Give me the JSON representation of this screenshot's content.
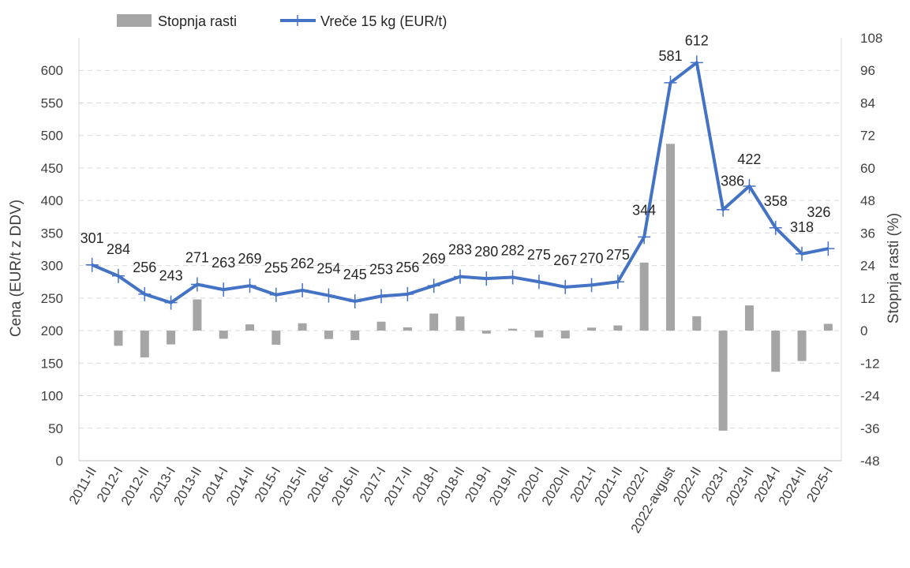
{
  "chart_data": {
    "type": "bar+line",
    "categories": [
      "2011-II",
      "2012-I",
      "2012-II",
      "2013-I",
      "2013-II",
      "2014-I",
      "2014-II",
      "2015-I",
      "2015-II",
      "2016-I",
      "2016-II",
      "2017-I",
      "2017-II",
      "2018-I",
      "2018-II",
      "2019-I",
      "2019-II",
      "2020-I",
      "2020-II",
      "2021-I",
      "2021-II",
      "2022-I",
      "2022-avgust",
      "2022-II",
      "2023-I",
      "2023-II",
      "2024-I",
      "2024-II",
      "2025-I"
    ],
    "series": [
      {
        "name": "Stopnja rasti",
        "type": "bar",
        "axis": "right",
        "color": "#a5a5a5",
        "values": [
          null,
          -5.6,
          -9.9,
          -5.1,
          11.5,
          -3.0,
          2.3,
          -5.2,
          2.7,
          -3.1,
          -3.5,
          3.3,
          1.2,
          6.3,
          5.2,
          -1.1,
          0.7,
          -2.5,
          -2.9,
          1.1,
          1.9,
          25.1,
          68.9,
          5.3,
          -36.9,
          9.3,
          -15.2,
          -11.2,
          2.5
        ]
      },
      {
        "name": "Vreče 15 kg (EUR/t)",
        "type": "line",
        "axis": "left",
        "color": "#4472c4",
        "values": [
          301,
          284,
          256,
          243,
          271,
          263,
          269,
          255,
          262,
          254,
          245,
          253,
          256,
          269,
          283,
          280,
          282,
          275,
          267,
          270,
          275,
          344,
          581,
          612,
          386,
          422,
          358,
          318,
          326
        ]
      }
    ],
    "ylabel": "Cena (EUR/t z DDV)",
    "ylabel_right": "Stopnja rasti (%)",
    "ylim": [
      0,
      650
    ],
    "y_ticks": [
      "0",
      "50",
      "100",
      "150",
      "200",
      "250",
      "300",
      "350",
      "400",
      "450",
      "500",
      "550",
      "600"
    ],
    "ylim_right": [
      -48,
      108
    ],
    "y_ticks_right": [
      "-48",
      "-36",
      "-24",
      "-12",
      "0",
      "12",
      "24",
      "36",
      "48",
      "60",
      "72",
      "84",
      "96",
      "108"
    ],
    "grid": true,
    "legend_position": "top-left"
  }
}
